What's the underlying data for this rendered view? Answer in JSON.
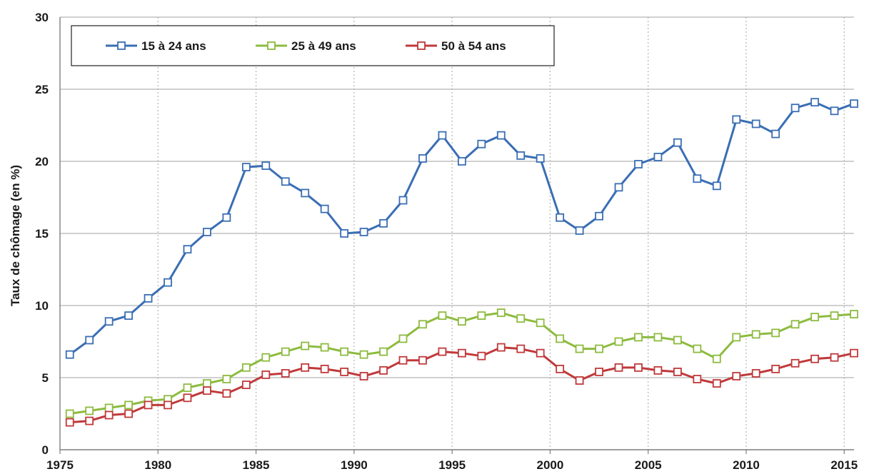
{
  "chart_data": {
    "type": "line",
    "title": "",
    "xlabel": "",
    "ylabel": "Taux de chômage (en %)",
    "xlim": [
      1975,
      2015.5
    ],
    "ylim": [
      0,
      30
    ],
    "x_ticks": [
      "1975",
      "1980",
      "1985",
      "1990",
      "1995",
      "2000",
      "2005",
      "2010",
      "2015"
    ],
    "y_ticks": [
      "0",
      "5",
      "10",
      "15",
      "20",
      "25",
      "30"
    ],
    "grid": "vertical dotted at x ticks, horizontal solid at y ticks",
    "legend": {
      "placement": "top-left",
      "entries": [
        "15 à 24 ans",
        "25 à 49 ans",
        "50 à 54 ans"
      ]
    },
    "x": [
      1975.5,
      1976.5,
      1977.5,
      1978.5,
      1979.5,
      1980.5,
      1981.5,
      1982.5,
      1983.5,
      1984.5,
      1985.5,
      1986.5,
      1987.5,
      1988.5,
      1989.5,
      1990.5,
      1991.5,
      1992.5,
      1993.5,
      1994.5,
      1995.5,
      1996.5,
      1997.5,
      1998.5,
      1999.5,
      2000.5,
      2001.5,
      2002.5,
      2003.5,
      2004.5,
      2005.5,
      2006.5,
      2007.5,
      2008.5,
      2009.5,
      2010.5,
      2011.5,
      2012.5,
      2013.5,
      2014.5,
      2015.5
    ],
    "series": [
      {
        "name": "15 à 24 ans",
        "color": "#3a6eb4",
        "values": [
          6.6,
          7.6,
          8.9,
          9.3,
          10.5,
          11.6,
          13.9,
          15.1,
          16.1,
          19.6,
          19.7,
          18.6,
          17.8,
          16.7,
          15.0,
          15.1,
          15.7,
          17.3,
          20.2,
          21.8,
          20.0,
          21.2,
          21.8,
          20.4,
          20.2,
          16.1,
          15.2,
          16.2,
          18.2,
          19.8,
          20.3,
          21.3,
          18.8,
          18.3,
          22.9,
          22.6,
          21.9,
          23.7,
          24.1,
          23.5,
          24.0
        ]
      },
      {
        "name": "25 à 49 ans",
        "color": "#8dbb3f",
        "values": [
          2.5,
          2.7,
          2.9,
          3.1,
          3.4,
          3.5,
          4.3,
          4.6,
          4.9,
          5.7,
          6.4,
          6.8,
          7.2,
          7.1,
          6.8,
          6.6,
          6.8,
          7.7,
          8.7,
          9.3,
          8.9,
          9.3,
          9.5,
          9.1,
          8.8,
          7.7,
          7.0,
          7.0,
          7.5,
          7.8,
          7.8,
          7.6,
          7.0,
          6.3,
          7.8,
          8.0,
          8.1,
          8.7,
          9.2,
          9.3,
          9.4
        ]
      },
      {
        "name": "50 à 54 ans",
        "color": "#c0393b",
        "values": [
          1.9,
          2.0,
          2.4,
          2.5,
          3.1,
          3.1,
          3.6,
          4.1,
          3.9,
          4.5,
          5.2,
          5.3,
          5.7,
          5.6,
          5.4,
          5.1,
          5.5,
          6.2,
          6.2,
          6.8,
          6.7,
          6.5,
          7.1,
          7.0,
          6.7,
          5.6,
          4.8,
          5.4,
          5.7,
          5.7,
          5.5,
          5.4,
          4.9,
          4.6,
          5.1,
          5.3,
          5.6,
          6.0,
          6.3,
          6.4,
          6.7
        ]
      }
    ]
  },
  "colors": {
    "grid": "#b5b5b5",
    "axis": "#7f7f7f",
    "legend_border": "#222222"
  }
}
